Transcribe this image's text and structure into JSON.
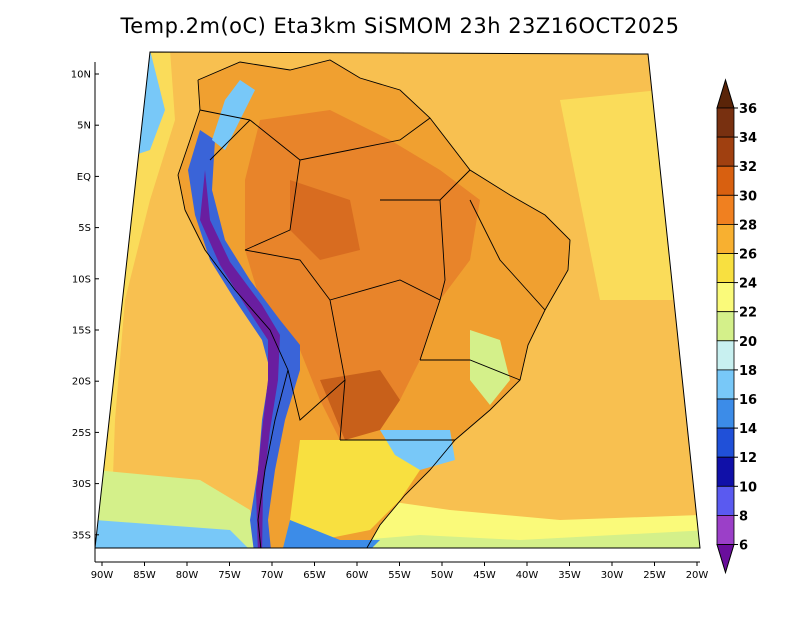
{
  "title": "Temp.2m(oC) Eta3km SiSMOM 23h 23Z16OCT2025",
  "map": {
    "region": "South America",
    "variable": "2 m air temperature",
    "units": "oC",
    "lon_range": [
      -90,
      -20
    ],
    "lat_range": [
      -38,
      11
    ],
    "lat_labels": [
      "10N",
      "5N",
      "EQ",
      "5S",
      "10S",
      "15S",
      "20S",
      "25S",
      "30S",
      "35S"
    ],
    "lon_labels": [
      "90W",
      "85W",
      "80W",
      "75W",
      "70W",
      "65W",
      "60W",
      "55W",
      "50W",
      "45W",
      "40W",
      "35W",
      "30W",
      "25W",
      "20W"
    ]
  },
  "colorbar": {
    "levels": [
      "6",
      "8",
      "10",
      "12",
      "14",
      "16",
      "18",
      "20",
      "22",
      "24",
      "26",
      "28",
      "30",
      "32",
      "34",
      "36"
    ],
    "colors": [
      "#6a0e9c",
      "#9b3fc8",
      "#5a5af0",
      "#1010a8",
      "#2050d8",
      "#3c8ce8",
      "#78c8f8",
      "#c8f0f0",
      "#d4f08a",
      "#fafa7a",
      "#f8e040",
      "#f8b030",
      "#f08020",
      "#d86010",
      "#a04010",
      "#783010",
      "#5a2408"
    ]
  },
  "colors": {
    "ocean_warm": "#f8c050",
    "ocean_mild": "#fadc5a",
    "land_hot": "#e8842a",
    "land_warm": "#f0a030",
    "andes_cold": "#3a64d8",
    "andes_coldest": "#6a1ea0",
    "border": "#000000"
  }
}
